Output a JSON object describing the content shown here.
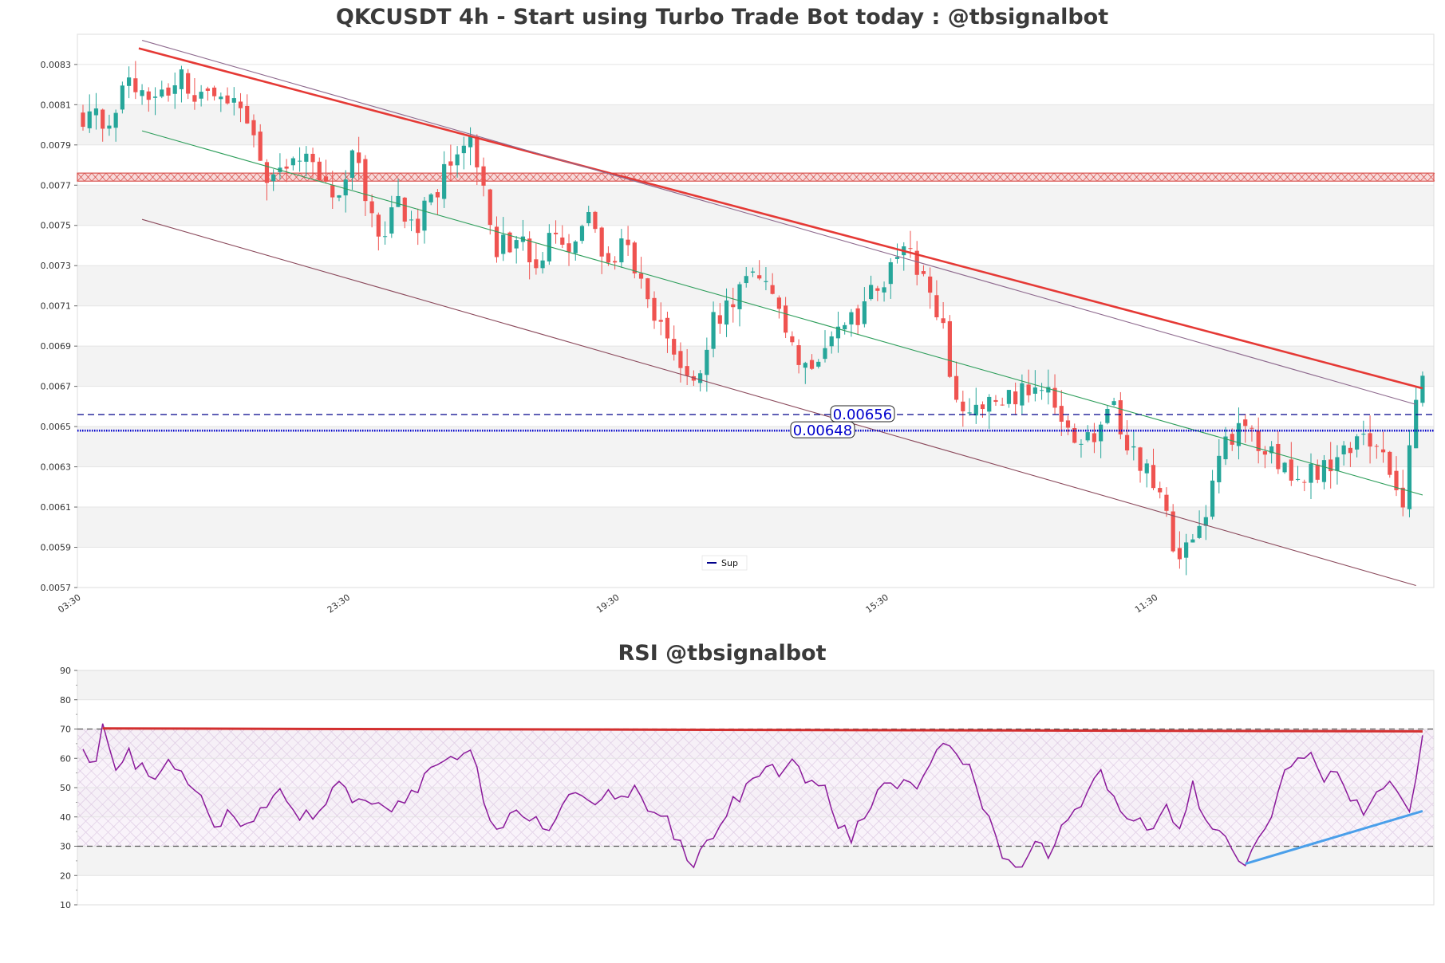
{
  "chart_data": [
    {
      "type": "candlestick",
      "title": "QKCUSDT 4h - Start using Turbo Trade Bot today : @tbsignalbot",
      "xlabel": "",
      "ylabel": "",
      "ylim": [
        0.0057,
        0.00845
      ],
      "y_ticks": [
        "0.0083",
        "0.0081",
        "0.0079",
        "0.0077",
        "0.0075",
        "0.0073",
        "0.0071",
        "0.0069",
        "0.0067",
        "0.0065",
        "0.0063",
        "0.0061",
        "0.0059",
        "0.0057"
      ],
      "x_ticks": [
        {
          "label": "03:30",
          "index": 0
        },
        {
          "label": "23:30",
          "index": 41
        },
        {
          "label": "19:30",
          "index": 82
        },
        {
          "label": "15:30",
          "index": 123
        },
        {
          "label": "11:30",
          "index": 164
        }
      ],
      "grid": "banded",
      "bar_count": 205,
      "up_color": "#26a69a",
      "down_color": "#ef5350",
      "close_path": [
        {
          "i": 0,
          "v": 0.00805
        },
        {
          "i": 4,
          "v": 0.008
        },
        {
          "i": 7,
          "v": 0.00828
        },
        {
          "i": 10,
          "v": 0.0081
        },
        {
          "i": 13,
          "v": 0.00818
        },
        {
          "i": 15,
          "v": 0.00826
        },
        {
          "i": 17,
          "v": 0.00808
        },
        {
          "i": 20,
          "v": 0.0082
        },
        {
          "i": 23,
          "v": 0.00814
        },
        {
          "i": 26,
          "v": 0.00792
        },
        {
          "i": 28,
          "v": 0.00774
        },
        {
          "i": 31,
          "v": 0.00782
        },
        {
          "i": 34,
          "v": 0.00789
        },
        {
          "i": 36,
          "v": 0.0077
        },
        {
          "i": 39,
          "v": 0.00762
        },
        {
          "i": 41,
          "v": 0.00785
        },
        {
          "i": 43,
          "v": 0.00766
        },
        {
          "i": 45,
          "v": 0.00742
        },
        {
          "i": 48,
          "v": 0.00759
        },
        {
          "i": 51,
          "v": 0.00752
        },
        {
          "i": 54,
          "v": 0.00768
        },
        {
          "i": 56,
          "v": 0.00783
        },
        {
          "i": 59,
          "v": 0.00796
        },
        {
          "i": 61,
          "v": 0.00768
        },
        {
          "i": 63,
          "v": 0.00737
        },
        {
          "i": 66,
          "v": 0.00745
        },
        {
          "i": 69,
          "v": 0.00726
        },
        {
          "i": 71,
          "v": 0.00742
        },
        {
          "i": 74,
          "v": 0.00735
        },
        {
          "i": 77,
          "v": 0.00752
        },
        {
          "i": 80,
          "v": 0.00732
        },
        {
          "i": 83,
          "v": 0.00744
        },
        {
          "i": 86,
          "v": 0.00708
        },
        {
          "i": 89,
          "v": 0.00695
        },
        {
          "i": 91,
          "v": 0.00676
        },
        {
          "i": 94,
          "v": 0.0068
        },
        {
          "i": 96,
          "v": 0.00702
        },
        {
          "i": 99,
          "v": 0.00714
        },
        {
          "i": 102,
          "v": 0.00724
        },
        {
          "i": 104,
          "v": 0.00717
        },
        {
          "i": 107,
          "v": 0.00698
        },
        {
          "i": 109,
          "v": 0.00676
        },
        {
          "i": 112,
          "v": 0.00688
        },
        {
          "i": 115,
          "v": 0.00703
        },
        {
          "i": 118,
          "v": 0.007
        },
        {
          "i": 120,
          "v": 0.00715
        },
        {
          "i": 123,
          "v": 0.00728
        },
        {
          "i": 125,
          "v": 0.00737
        },
        {
          "i": 127,
          "v": 0.00731
        },
        {
          "i": 129,
          "v": 0.00712
        },
        {
          "i": 131,
          "v": 0.00696
        },
        {
          "i": 133,
          "v": 0.00662
        },
        {
          "i": 135,
          "v": 0.00659
        },
        {
          "i": 138,
          "v": 0.00661
        },
        {
          "i": 141,
          "v": 0.00663
        },
        {
          "i": 143,
          "v": 0.00667
        },
        {
          "i": 145,
          "v": 0.00675
        },
        {
          "i": 147,
          "v": 0.00667
        },
        {
          "i": 149,
          "v": 0.00648
        },
        {
          "i": 152,
          "v": 0.0064
        },
        {
          "i": 155,
          "v": 0.0065
        },
        {
          "i": 157,
          "v": 0.00658
        },
        {
          "i": 159,
          "v": 0.00638
        },
        {
          "i": 161,
          "v": 0.00633
        },
        {
          "i": 163,
          "v": 0.0062
        },
        {
          "i": 165,
          "v": 0.00604
        },
        {
          "i": 167,
          "v": 0.00583
        },
        {
          "i": 169,
          "v": 0.0059
        },
        {
          "i": 171,
          "v": 0.00607
        },
        {
          "i": 173,
          "v": 0.0064
        },
        {
          "i": 175,
          "v": 0.00646
        },
        {
          "i": 177,
          "v": 0.00649
        },
        {
          "i": 179,
          "v": 0.00641
        },
        {
          "i": 181,
          "v": 0.00642
        },
        {
          "i": 183,
          "v": 0.00627
        },
        {
          "i": 185,
          "v": 0.0062
        },
        {
          "i": 187,
          "v": 0.00626
        },
        {
          "i": 189,
          "v": 0.0063
        },
        {
          "i": 191,
          "v": 0.00633
        },
        {
          "i": 193,
          "v": 0.00641
        },
        {
          "i": 195,
          "v": 0.0065
        },
        {
          "i": 197,
          "v": 0.00638
        },
        {
          "i": 199,
          "v": 0.00625
        },
        {
          "i": 201,
          "v": 0.00615
        },
        {
          "i": 202,
          "v": 0.0064
        },
        {
          "i": 203,
          "v": 0.00668
        },
        {
          "i": 204,
          "v": 0.00678
        }
      ],
      "horizontal_levels": [
        {
          "value": 0.00656,
          "label": "0.00656",
          "style": "dashed",
          "color": "#00008b"
        },
        {
          "value": 0.00648,
          "label": "0.00648",
          "style": "dotted",
          "color": "#0000cc"
        }
      ],
      "resistance_zone": [
        0.00772,
        0.00776
      ],
      "trendlines": [
        {
          "kind": "resistance",
          "from": [
            8.5,
            0.00838
          ],
          "to": [
            204,
            0.00669
          ],
          "color": "#e53935"
        },
        {
          "kind": "channel_upper",
          "from": [
            9,
            0.00842
          ],
          "to": [
            203,
            0.00661
          ],
          "color": "#8e6a8e"
        },
        {
          "kind": "channel_mid",
          "from": [
            9,
            0.00797
          ],
          "to": [
            204,
            0.00616
          ],
          "color": "#2e9e5b"
        },
        {
          "kind": "channel_lower",
          "from": [
            9,
            0.00753
          ],
          "to": [
            203,
            0.00571
          ],
          "color": "#8b4a5c"
        }
      ],
      "legend": [
        {
          "name": "Sup",
          "color": "#00008b"
        }
      ],
      "legend_position": "bottom-center"
    },
    {
      "type": "line",
      "title": "RSI @tbsignalbot",
      "ylim": [
        10,
        90
      ],
      "y_ticks": [
        "90",
        "80",
        "70",
        "60",
        "50",
        "40",
        "30",
        "20",
        "10"
      ],
      "reference_lines": [
        70,
        30
      ],
      "line_color": "#8b1a9b",
      "series_path": [
        {
          "i": 0,
          "v": 62
        },
        {
          "i": 2,
          "v": 60
        },
        {
          "i": 3,
          "v": 70
        },
        {
          "i": 5,
          "v": 57
        },
        {
          "i": 7,
          "v": 61
        },
        {
          "i": 9,
          "v": 56
        },
        {
          "i": 11,
          "v": 51
        },
        {
          "i": 13,
          "v": 58
        },
        {
          "i": 16,
          "v": 51
        },
        {
          "i": 18,
          "v": 45
        },
        {
          "i": 20,
          "v": 35
        },
        {
          "i": 22,
          "v": 42
        },
        {
          "i": 24,
          "v": 37
        },
        {
          "i": 27,
          "v": 43
        },
        {
          "i": 30,
          "v": 49
        },
        {
          "i": 33,
          "v": 40
        },
        {
          "i": 36,
          "v": 42
        },
        {
          "i": 39,
          "v": 52
        },
        {
          "i": 41,
          "v": 43
        },
        {
          "i": 44,
          "v": 46
        },
        {
          "i": 47,
          "v": 44
        },
        {
          "i": 50,
          "v": 47
        },
        {
          "i": 53,
          "v": 55
        },
        {
          "i": 56,
          "v": 60
        },
        {
          "i": 59,
          "v": 65
        },
        {
          "i": 61,
          "v": 47
        },
        {
          "i": 63,
          "v": 35
        },
        {
          "i": 66,
          "v": 43
        },
        {
          "i": 69,
          "v": 38
        },
        {
          "i": 71,
          "v": 33
        },
        {
          "i": 73,
          "v": 44
        },
        {
          "i": 76,
          "v": 48
        },
        {
          "i": 78,
          "v": 43
        },
        {
          "i": 80,
          "v": 51
        },
        {
          "i": 82,
          "v": 45
        },
        {
          "i": 84,
          "v": 50
        },
        {
          "i": 86,
          "v": 44
        },
        {
          "i": 89,
          "v": 38
        },
        {
          "i": 91,
          "v": 30
        },
        {
          "i": 93,
          "v": 24
        },
        {
          "i": 95,
          "v": 30
        },
        {
          "i": 97,
          "v": 36
        },
        {
          "i": 99,
          "v": 45
        },
        {
          "i": 102,
          "v": 52
        },
        {
          "i": 104,
          "v": 58
        },
        {
          "i": 106,
          "v": 56
        },
        {
          "i": 108,
          "v": 62
        },
        {
          "i": 110,
          "v": 52
        },
        {
          "i": 113,
          "v": 49
        },
        {
          "i": 115,
          "v": 38
        },
        {
          "i": 117,
          "v": 33
        },
        {
          "i": 119,
          "v": 40
        },
        {
          "i": 121,
          "v": 49
        },
        {
          "i": 124,
          "v": 52
        },
        {
          "i": 127,
          "v": 48
        },
        {
          "i": 129,
          "v": 58
        },
        {
          "i": 131,
          "v": 66
        },
        {
          "i": 133,
          "v": 62
        },
        {
          "i": 135,
          "v": 57
        },
        {
          "i": 137,
          "v": 44
        },
        {
          "i": 139,
          "v": 32
        },
        {
          "i": 141,
          "v": 24
        },
        {
          "i": 143,
          "v": 25
        },
        {
          "i": 145,
          "v": 31
        },
        {
          "i": 147,
          "v": 28
        },
        {
          "i": 149,
          "v": 35
        },
        {
          "i": 151,
          "v": 40
        },
        {
          "i": 153,
          "v": 50
        },
        {
          "i": 155,
          "v": 56
        },
        {
          "i": 157,
          "v": 47
        },
        {
          "i": 159,
          "v": 37
        },
        {
          "i": 161,
          "v": 40
        },
        {
          "i": 163,
          "v": 34
        },
        {
          "i": 165,
          "v": 44
        },
        {
          "i": 167,
          "v": 37
        },
        {
          "i": 169,
          "v": 50
        },
        {
          "i": 171,
          "v": 38
        },
        {
          "i": 173,
          "v": 35
        },
        {
          "i": 175,
          "v": 28
        },
        {
          "i": 177,
          "v": 24
        },
        {
          "i": 179,
          "v": 31
        },
        {
          "i": 181,
          "v": 40
        },
        {
          "i": 183,
          "v": 55
        },
        {
          "i": 185,
          "v": 59
        },
        {
          "i": 187,
          "v": 60
        },
        {
          "i": 189,
          "v": 52
        },
        {
          "i": 191,
          "v": 57
        },
        {
          "i": 193,
          "v": 47
        },
        {
          "i": 195,
          "v": 43
        },
        {
          "i": 197,
          "v": 48
        },
        {
          "i": 199,
          "v": 52
        },
        {
          "i": 201,
          "v": 47
        },
        {
          "i": 202,
          "v": 40
        },
        {
          "i": 203,
          "v": 55
        },
        {
          "i": 204,
          "v": 66
        }
      ],
      "trendlines": [
        {
          "kind": "resistance",
          "from": [
            3,
            70.2
          ],
          "to": [
            204,
            69.2
          ],
          "color": "#d32f2f"
        },
        {
          "kind": "support",
          "from": [
            177,
            24
          ],
          "to": [
            204,
            42
          ],
          "color": "#4a9fea"
        }
      ]
    }
  ]
}
